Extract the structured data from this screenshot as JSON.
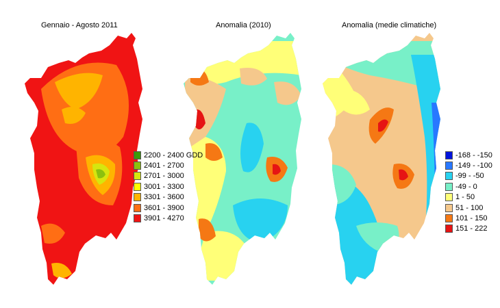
{
  "panels": [
    {
      "title": "Gennaio - Agosto 2011",
      "legend": [
        {
          "label": "2200 - 2400 GDD",
          "color": "#3c9b0a"
        },
        {
          "label": "2401 - 2700",
          "color": "#8cc00f"
        },
        {
          "label": "2701 - 3000",
          "color": "#d6e60f"
        },
        {
          "label": "3001 - 3300",
          "color": "#ffff00"
        },
        {
          "label": "3301 - 3600",
          "color": "#ffb400"
        },
        {
          "label": "3601 - 3900",
          "color": "#ff6e14"
        },
        {
          "label": "3901 - 4270",
          "color": "#f01414"
        }
      ]
    },
    {
      "title": "Anomalia (2010)"
    },
    {
      "title": "Anomalia (medie climatiche)",
      "legend": [
        {
          "label": "-168 - -150",
          "color": "#0014dc"
        },
        {
          "label": "-149 - -100",
          "color": "#2878ff"
        },
        {
          "label": "-99 - -50",
          "color": "#28d2f0"
        },
        {
          "label": "-49 - 0",
          "color": "#78f0c8"
        },
        {
          "label": "1 - 50",
          "color": "#ffff78"
        },
        {
          "label": "51 - 100",
          "color": "#f5c88c"
        },
        {
          "label": "101 - 150",
          "color": "#f57814"
        },
        {
          "label": "151 - 222",
          "color": "#e61414"
        }
      ]
    }
  ]
}
